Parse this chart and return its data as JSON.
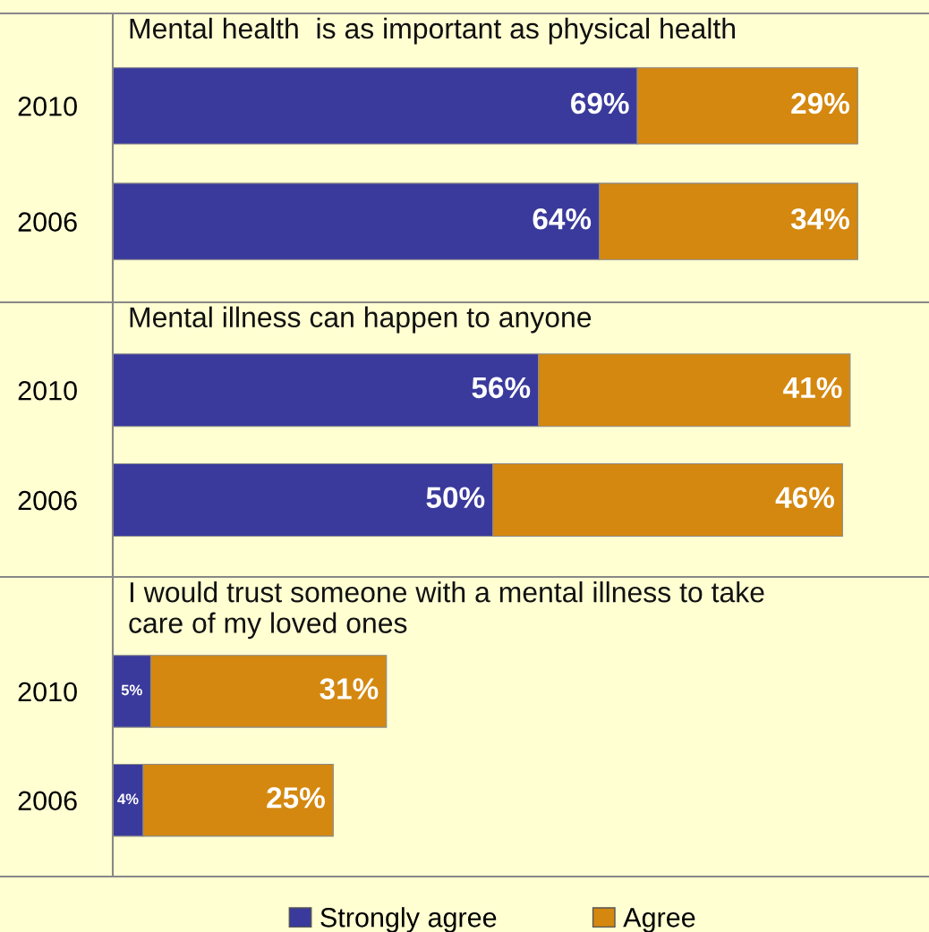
{
  "chart_data": [
    {
      "type": "bar",
      "orientation": "horizontal",
      "stacked": true,
      "title": "Mental health  is as important as physical health",
      "categories": [
        "2010",
        "2006"
      ],
      "tick_labels": "y",
      "legend": false,
      "series": [
        {
          "color": "#3a3a9c",
          "values": [
            69,
            64
          ],
          "value_labels": [
            "69%",
            "64%"
          ]
        },
        {
          "color": "#d4880f",
          "values": [
            29,
            34
          ],
          "value_labels": [
            "29%",
            "34%"
          ]
        }
      ]
    },
    {
      "type": "bar",
      "orientation": "horizontal",
      "stacked": true,
      "title": "Mental illness can happen to anyone",
      "categories": [
        "2010",
        "2006"
      ],
      "tick_labels": "y",
      "legend": false,
      "series": [
        {
          "color": "#3a3a9c",
          "values": [
            56,
            50
          ],
          "value_labels": [
            "56%",
            "50%"
          ]
        },
        {
          "color": "#d4880f",
          "values": [
            41,
            46
          ],
          "value_labels": [
            "41%",
            "46%"
          ]
        }
      ]
    },
    {
      "type": "bar",
      "orientation": "horizontal",
      "stacked": true,
      "title": "I would trust someone with a mental illness to take\ncare of my loved ones",
      "categories": [
        "2010",
        "2006"
      ],
      "tick_labels": "y",
      "legend": "bottom",
      "series": [
        {
          "name": "Strongly agree",
          "color": "#3a3a9c",
          "values": [
            5,
            4
          ],
          "value_labels": [
            "5%",
            "4%"
          ]
        },
        {
          "name": "Agree",
          "color": "#d4880f",
          "values": [
            31,
            25
          ],
          "value_labels": [
            "31%",
            "25%"
          ]
        }
      ]
    }
  ]
}
